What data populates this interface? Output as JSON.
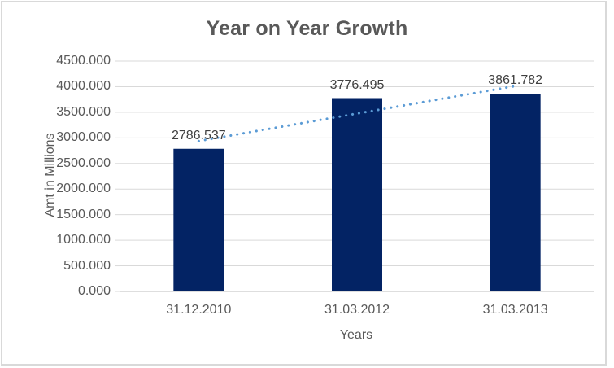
{
  "chart_data": {
    "type": "bar",
    "title": "Year on Year Growth",
    "categories": [
      "31.12.2010",
      "31.03.2012",
      "31.03.2013"
    ],
    "values": [
      2786.537,
      3776.495,
      3861.782
    ],
    "data_labels": [
      "2786.537",
      "3776.495",
      "3861.782"
    ],
    "xlabel": "Years",
    "ylabel": "Amt in Millions",
    "ylim": [
      0,
      4500
    ],
    "ytick_step": 500,
    "ytick_labels": [
      "0.000",
      "500.000",
      "1000.000",
      "1500.000",
      "2000.000",
      "2500.000",
      "3000.000",
      "3500.000",
      "4000.000",
      "4500.000"
    ],
    "grid": true,
    "legend_position": "none",
    "trendline": {
      "type": "linear",
      "style": "dotted"
    }
  },
  "colors": {
    "bar": "#032364",
    "trendline": "#5B9BD5",
    "gridline": "#D9D9D9",
    "axis_line": "#C9C9C9",
    "tick_text": "#595959",
    "data_label_text": "#404040",
    "title_text": "#595959",
    "frame_border": "#D9D9D9"
  }
}
